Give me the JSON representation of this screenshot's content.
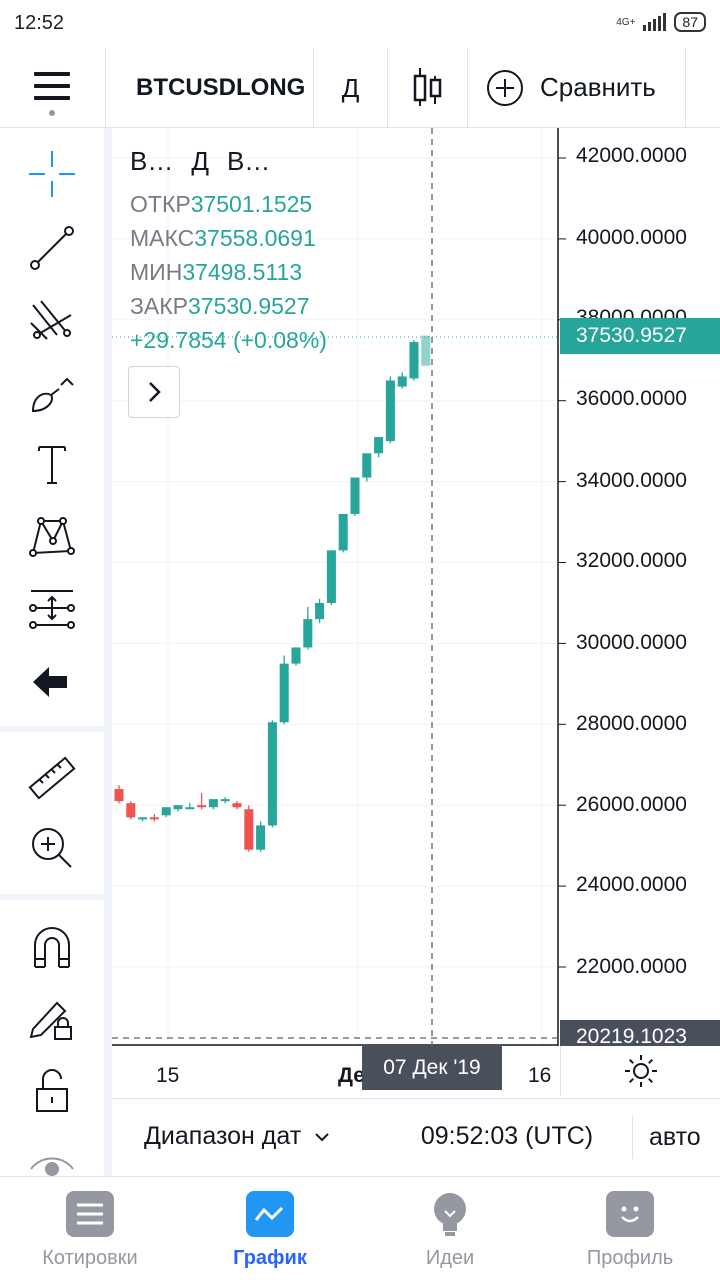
{
  "status": {
    "time": "12:52",
    "network": "4G+",
    "battery": "87"
  },
  "toolbar": {
    "symbol": "BTCUSDLONG",
    "interval": "Д",
    "compare_label": "Сравнить"
  },
  "legend": {
    "short_name": "В…",
    "interval": "Д",
    "exchange": "В…",
    "rows": [
      {
        "label": "ОТКР",
        "value": "37501.1525"
      },
      {
        "label": "МАКС",
        "value": "37558.0691"
      },
      {
        "label": "МИН",
        "value": "37498.5113"
      },
      {
        "label": "ЗАКР",
        "value": "37530.9527"
      }
    ],
    "change": "+29.7854 (+0.08%)"
  },
  "price_axis": {
    "labels": [
      "42000.0000",
      "40000.0000",
      "38000.0000",
      "36000.0000",
      "34000.0000",
      "32000.0000",
      "30000.0000",
      "28000.0000",
      "26000.0000",
      "24000.0000",
      "22000.0000"
    ],
    "last_price": "37530.9527",
    "low_price": "20219.1023"
  },
  "time_axis": {
    "labels": [
      "15",
      "Дек",
      "16"
    ],
    "crosshair": "07 Дек '19"
  },
  "controls": {
    "date_range": "Диапазон дат",
    "clock": "09:52:03 (UTC)",
    "scale": "авто"
  },
  "nav": {
    "items": [
      {
        "label": "Котировки",
        "icon": "list-icon"
      },
      {
        "label": "График",
        "icon": "chart-icon"
      },
      {
        "label": "Идеи",
        "icon": "lightbulb-icon"
      },
      {
        "label": "Профиль",
        "icon": "smiley-icon"
      }
    ],
    "active": "График"
  },
  "colors": {
    "up": "#26a69a",
    "down": "#ef5350",
    "accent": "#2962ff",
    "crosshair_label": "#4a4f5c"
  },
  "chart_data": {
    "type": "candlestick",
    "ylim": [
      20219.1023,
      42500
    ],
    "candles": [
      {
        "o": 26400,
        "h": 26500,
        "c": 26100,
        "l": 26050
      },
      {
        "o": 26050,
        "h": 26100,
        "c": 25700,
        "l": 25650
      },
      {
        "o": 25650,
        "h": 25700,
        "c": 25700,
        "l": 25600
      },
      {
        "o": 25700,
        "h": 25780,
        "c": 25680,
        "l": 25600
      },
      {
        "o": 25750,
        "h": 25900,
        "c": 25950,
        "l": 25700
      },
      {
        "o": 25900,
        "h": 26000,
        "c": 26000,
        "l": 25850
      },
      {
        "o": 25950,
        "h": 26050,
        "c": 25950,
        "l": 25900
      },
      {
        "o": 26000,
        "h": 26300,
        "c": 25950,
        "l": 25900
      },
      {
        "o": 25950,
        "h": 26100,
        "c": 26150,
        "l": 25900
      },
      {
        "o": 26100,
        "h": 26200,
        "c": 26150,
        "l": 26050
      },
      {
        "o": 26050,
        "h": 26100,
        "c": 25950,
        "l": 25900
      },
      {
        "o": 25900,
        "h": 26000,
        "c": 24900,
        "l": 24850
      },
      {
        "o": 24900,
        "h": 25600,
        "c": 25500,
        "l": 24850
      },
      {
        "o": 25500,
        "h": 28100,
        "c": 28050,
        "l": 25450
      },
      {
        "o": 28050,
        "h": 29700,
        "c": 29500,
        "l": 28000
      },
      {
        "o": 29500,
        "h": 29900,
        "c": 29900,
        "l": 29450
      },
      {
        "o": 29900,
        "h": 30900,
        "c": 30600,
        "l": 29850
      },
      {
        "o": 30600,
        "h": 31100,
        "c": 31000,
        "l": 30500
      },
      {
        "o": 31000,
        "h": 32300,
        "c": 32300,
        "l": 30950
      },
      {
        "o": 32300,
        "h": 33200,
        "c": 33200,
        "l": 32250
      },
      {
        "o": 33200,
        "h": 34100,
        "c": 34100,
        "l": 33150
      },
      {
        "o": 34100,
        "h": 34700,
        "c": 34700,
        "l": 34000
      },
      {
        "o": 34700,
        "h": 35100,
        "c": 35100,
        "l": 34600
      },
      {
        "o": 35000,
        "h": 36600,
        "c": 36500,
        "l": 34950
      },
      {
        "o": 36350,
        "h": 36700,
        "c": 36600,
        "l": 36300
      },
      {
        "o": 36550,
        "h": 37500,
        "c": 37450,
        "l": 36500
      },
      {
        "o": 37501.1525,
        "h": 37558.0691,
        "c": 37530.9527,
        "l": 37498.5113
      }
    ]
  }
}
